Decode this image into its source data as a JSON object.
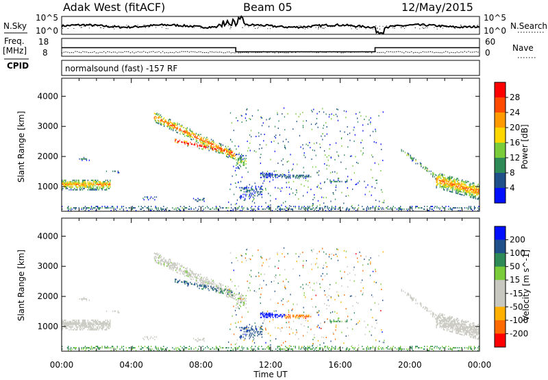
{
  "header": {
    "station": "Adak West (fitACF)",
    "beam": "Beam 05",
    "date": "12/May/2015"
  },
  "side_labels": {
    "nsky": "N.Sky",
    "nsearch": "N.Search",
    "freq": "Freq.",
    "mhz": "[MHz]",
    "nave": "Nave",
    "cpid": "CPID"
  },
  "strip_ticks": {
    "nsky_left": [
      "10^5",
      "10^0"
    ],
    "nsky_right": [
      "10^5",
      "10^0"
    ],
    "freq_left": [
      "18",
      "8"
    ],
    "nave_right": [
      "60",
      "0"
    ]
  },
  "cpid_text": "normalsound (fast) -157 RF",
  "colors": {
    "power_scale": [
      "#0010ff",
      "#20508a",
      "#2e8b57",
      "#7acc3a",
      "#ffd700",
      "#ff9a00",
      "#ff4a00",
      "#ff0000"
    ],
    "velocity_scale": [
      "#ff0000",
      "#ff6a00",
      "#ffb000",
      "#c8c8c0",
      "#c8c8c0",
      "#7acc3a",
      "#2e8b57",
      "#20508a",
      "#0010ff"
    ]
  },
  "chart_data": [
    {
      "type": "heatmap",
      "panel": "power",
      "ylabel": "Slant Range [km]",
      "xlabel": "Time UT",
      "x_ticks": [
        "00:00",
        "04:00",
        "08:00",
        "12:00",
        "16:00",
        "20:00",
        "00:00"
      ],
      "xlim_hours": [
        0,
        24
      ],
      "y_ticks": [
        1000,
        2000,
        3000,
        4000
      ],
      "ylim": [
        180,
        4600
      ],
      "colorbar_label": "Power [dB]",
      "colorbar_ticks": [
        4,
        8,
        12,
        16,
        20,
        24,
        28
      ],
      "colorbar_range": [
        0,
        32
      ]
    },
    {
      "type": "heatmap",
      "panel": "velocity",
      "ylabel": "Slant Range [km]",
      "xlabel": "Time UT",
      "x_ticks": [
        "00:00",
        "04:00",
        "08:00",
        "12:00",
        "16:00",
        "20:00",
        "00:00"
      ],
      "xlim_hours": [
        0,
        24
      ],
      "y_ticks": [
        1000,
        2000,
        3000,
        4000
      ],
      "ylim": [
        180,
        4600
      ],
      "colorbar_label": "Velocity [m s^-1]",
      "colorbar_ticks": [
        "200",
        "100",
        "50",
        "15",
        "-15",
        "-50",
        "-100",
        "-200"
      ]
    }
  ],
  "strips": {
    "freq_mhz": [
      {
        "t0": 0.0,
        "t1": 10.0,
        "value": 12.8
      },
      {
        "t0": 10.0,
        "t1": 18.0,
        "value": 10.5
      },
      {
        "t0": 18.0,
        "t1": 24.0,
        "value": 12.8
      }
    ],
    "nave_level": 0.25
  }
}
